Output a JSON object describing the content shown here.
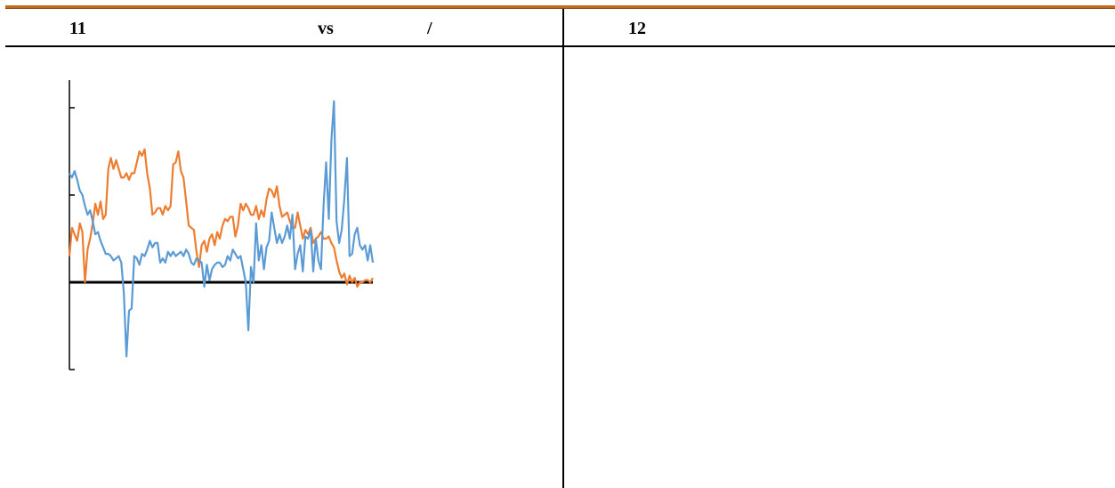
{
  "header": {
    "left_num": "11",
    "vs": "vs",
    "slash": "/",
    "right_num": "12"
  },
  "chart_data": {
    "type": "line",
    "title": "",
    "xlabel": "",
    "ylabel": "",
    "xlim": [
      0,
      116
    ],
    "ylim": [
      -4,
      8
    ],
    "y_ticks": [
      -4,
      0,
      4,
      8
    ],
    "grid": false,
    "legend": "none",
    "series": [
      {
        "color": "#5b9bd5",
        "values": [
          5,
          4.8,
          5.1,
          4.7,
          4.2,
          4.0,
          3.5,
          3.1,
          3.3,
          2.8,
          2.2,
          2.3,
          1.9,
          1.6,
          1.3,
          1.3,
          1.2,
          1.0,
          1.1,
          1.2,
          0.9,
          -0.5,
          -3.4,
          -1.3,
          -1.2,
          1.2,
          1.1,
          0.8,
          1.3,
          1.2,
          1.5,
          1.9,
          1.6,
          1.8,
          1.8,
          0.9,
          1.1,
          0.9,
          1.4,
          1.2,
          1.4,
          1.2,
          1.3,
          1.4,
          1.2,
          1.5,
          1.3,
          0.9,
          0.8,
          1.1,
          1.0,
          0.9,
          -0.2,
          0.8,
          0.1,
          0.6,
          0.8,
          0.9,
          0.9,
          0.7,
          0.8,
          1.2,
          1.0,
          1.5,
          1.3,
          1.1,
          1.2,
          0.6,
          0.0,
          -2.2,
          0.7,
          0.0,
          2.7,
          1.0,
          1.7,
          0.6,
          1.6,
          1.9,
          3.2,
          2.5,
          1.8,
          2.2,
          1.8,
          2.1,
          2.6,
          2.0,
          3.1,
          0.6,
          1.3,
          1.7,
          0.5,
          2.1,
          2.0,
          2.4,
          0.5,
          2.0,
          1.0,
          0.6,
          3.5,
          5.5,
          2.9,
          6.5,
          8.3,
          2.8,
          1.8,
          2.4,
          3.8,
          5.7,
          1.2,
          1.3,
          2.2,
          2.5,
          1.7,
          1.5,
          1.7,
          1.0,
          1.7,
          0.9
        ],
        "values_note": ""
      },
      {
        "color": "#ed7d31",
        "values": [
          1.2,
          2.5,
          2.2,
          1.9,
          2.7,
          2.3,
          0.0,
          1.5,
          2.0,
          2.7,
          3.6,
          3.1,
          3.7,
          2.9,
          3.1,
          5.2,
          5.7,
          5.2,
          5.6,
          5.2,
          4.8,
          4.8,
          5.0,
          4.7,
          5.0,
          5.0,
          5.5,
          6.0,
          5.8,
          6.1,
          5.0,
          4.3,
          3.1,
          3.2,
          3.4,
          3.4,
          3.1,
          3.5,
          3.3,
          3.5,
          5.4,
          5.5,
          6.0,
          5.1,
          4.8,
          3.7,
          2.6,
          2.5,
          2.4,
          1.4,
          0.7,
          1.7,
          1.9,
          1.4,
          2.0,
          2.2,
          1.7,
          2.3,
          2.0,
          2.6,
          2.9,
          2.8,
          3.0,
          3.0,
          2.1,
          2.6,
          3.6,
          3.3,
          3.6,
          3.4,
          3.1,
          3.1,
          3.5,
          2.9,
          3.3,
          3.0,
          3.8,
          4.3,
          4.2,
          3.9,
          4.4,
          3.5,
          3.0,
          3.1,
          3.2,
          2.8,
          2.5,
          2.5,
          3.2,
          2.6,
          2.0,
          2.4,
          2.2,
          2.5,
          1.8,
          2.0,
          2.1,
          2.3,
          2.0,
          2.0,
          2.1,
          1.8,
          1.6,
          1.0,
          0.5,
          0.2,
          0.4,
          -0.1,
          0.3,
          0.0,
          0.2,
          -0.2,
          0.0,
          0.0,
          0.1,
          0.1,
          0.0,
          0.2
        ]
      }
    ]
  }
}
